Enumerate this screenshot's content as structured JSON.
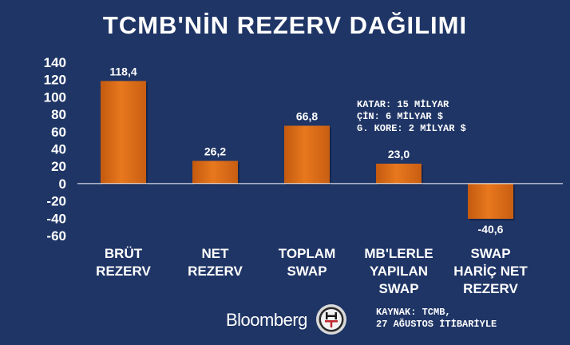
{
  "title": "TCMB'NİN REZERV DAĞILIMI",
  "chart_data": {
    "type": "bar",
    "categories": [
      [
        "BRÜT",
        "REZERV"
      ],
      [
        "NET",
        "REZERV"
      ],
      [
        "TOPLAM",
        "SWAP"
      ],
      [
        "MB'LERLE",
        "YAPILAN",
        "SWAP"
      ],
      [
        "SWAP",
        "HARİÇ NET",
        "REZERV"
      ]
    ],
    "values": [
      118.4,
      26.2,
      66.8,
      23.0,
      -40.6
    ],
    "data_labels": [
      "118,4",
      "26,2",
      "66,8",
      "23,0",
      "-40,6"
    ],
    "y_ticks": [
      140,
      120,
      100,
      80,
      60,
      40,
      20,
      0,
      -20,
      -40,
      -60
    ],
    "ylim": [
      -60,
      140
    ],
    "bar_color": "#e0701a",
    "grid": false
  },
  "annotation": [
    "KATAR: 15 MİLYAR",
    "ÇİN: 6 MİLYAR $",
    "G. KORE: 2 MİLYAR $"
  ],
  "source": [
    "KAYNAK: TCMB,",
    "27 AĞUSTOS İTİBARİYLE"
  ],
  "brand": "Bloomberg",
  "logo": "ht-logo",
  "colors": {
    "background": "#1f3566",
    "bar": "#e0701a",
    "text": "#ffffff"
  }
}
